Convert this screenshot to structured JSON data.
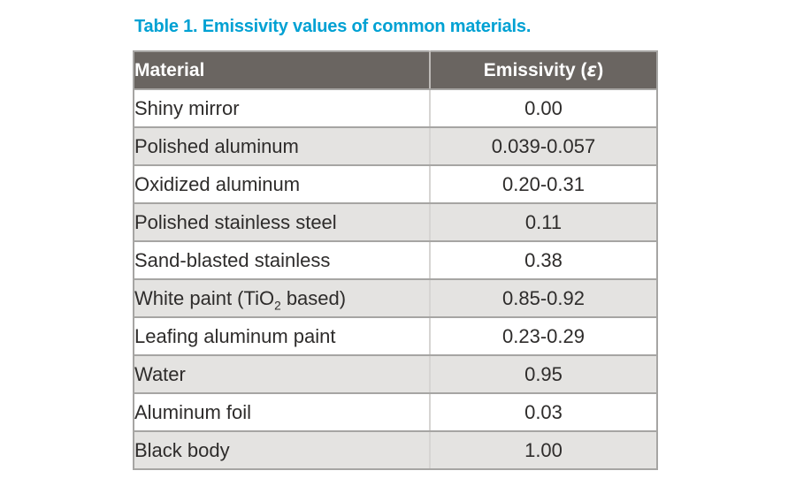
{
  "title": {
    "text": "Table 1. Emissivity values of common materials."
  },
  "table": {
    "header": {
      "material_label": "Material",
      "emissivity_prefix": "Emissivity (",
      "emissivity_symbol": "ε",
      "emissivity_suffix": ")"
    },
    "rows": [
      {
        "material": "Shiny mirror",
        "emissivity": "0.00"
      },
      {
        "material": "Polished aluminum",
        "emissivity": "0.039-0.057"
      },
      {
        "material": "Oxidized aluminum",
        "emissivity": "0.20-0.31"
      },
      {
        "material": "Polished stainless steel",
        "emissivity": "0.11"
      },
      {
        "material": "Sand-blasted stainless",
        "emissivity": "0.38"
      },
      {
        "material": "White paint (TiO_{2} based)",
        "emissivity": "0.85-0.92"
      },
      {
        "material": "Leafing aluminum paint",
        "emissivity": "0.23-0.29"
      },
      {
        "material": "Water",
        "emissivity": "0.95"
      },
      {
        "material": "Aluminum foil",
        "emissivity": "0.03"
      },
      {
        "material": "Black body",
        "emissivity": "1.00"
      }
    ]
  },
  "colors": {
    "title": "#00A1D3",
    "header_bg": "#6A6561",
    "header_text": "#FFFFFF",
    "row_alt": "#E4E3E1",
    "grid": "#A6A5A3",
    "text": "#2E2C2B"
  },
  "chart_data": {
    "type": "table",
    "title": "Table 1. Emissivity values of common materials.",
    "columns": [
      "Material",
      "Emissivity (ε)"
    ],
    "rows": [
      [
        "Shiny mirror",
        "0.00"
      ],
      [
        "Polished aluminum",
        "0.039-0.057"
      ],
      [
        "Oxidized aluminum",
        "0.20-0.31"
      ],
      [
        "Polished stainless steel",
        "0.11"
      ],
      [
        "Sand-blasted stainless",
        "0.38"
      ],
      [
        "White paint (TiO2 based)",
        "0.85-0.92"
      ],
      [
        "Leafing aluminum paint",
        "0.23-0.29"
      ],
      [
        "Water",
        "0.95"
      ],
      [
        "Aluminum foil",
        "0.03"
      ],
      [
        "Black body",
        "1.00"
      ]
    ]
  }
}
